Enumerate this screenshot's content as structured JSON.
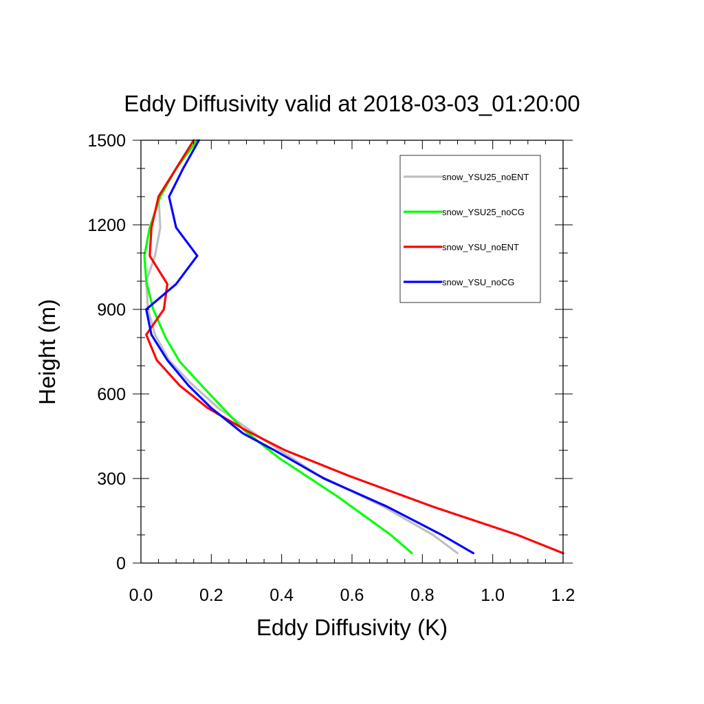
{
  "chart_data": {
    "type": "line",
    "title": "Eddy Diffusivity valid at 2018-03-03_01:20:00",
    "xlabel": "Eddy Diffusivity (K)",
    "ylabel": "Height (m)",
    "xlim": [
      0,
      1.2
    ],
    "ylim": [
      0,
      1500
    ],
    "x_ticks": [
      "0.0",
      "0.2",
      "0.4",
      "0.6",
      "0.8",
      "1.0",
      "1.2"
    ],
    "y_ticks": [
      "0",
      "300",
      "600",
      "900",
      "1200",
      "1500"
    ],
    "legend_position": "top-right",
    "series": [
      {
        "name": "snow_YSU25_noENT",
        "color": "#bfbfbf",
        "points": [
          [
            0.9,
            35
          ],
          [
            0.83,
            100
          ],
          [
            0.69,
            200
          ],
          [
            0.5,
            315
          ],
          [
            0.34,
            445
          ],
          [
            0.22,
            550
          ],
          [
            0.14,
            640
          ],
          [
            0.08,
            720
          ],
          [
            0.04,
            810
          ],
          [
            0.02,
            900
          ],
          [
            0.015,
            1000
          ],
          [
            0.04,
            1090
          ],
          [
            0.055,
            1190
          ],
          [
            0.05,
            1300
          ],
          [
            0.1,
            1400
          ],
          [
            0.15,
            1500
          ]
        ]
      },
      {
        "name": "snow_YSU25_noCG",
        "color": "#00ff00",
        "points": [
          [
            0.77,
            35
          ],
          [
            0.71,
            100
          ],
          [
            0.56,
            235
          ],
          [
            0.39,
            375
          ],
          [
            0.29,
            475
          ],
          [
            0.18,
            620
          ],
          [
            0.11,
            715
          ],
          [
            0.07,
            800
          ],
          [
            0.035,
            900
          ],
          [
            0.015,
            1000
          ],
          [
            0.01,
            1090
          ],
          [
            0.025,
            1190
          ],
          [
            0.055,
            1300
          ],
          [
            0.1,
            1400
          ],
          [
            0.16,
            1500
          ]
        ]
      },
      {
        "name": "snow_YSU_noENT",
        "color": "#ff0000",
        "points": [
          [
            1.2,
            35
          ],
          [
            1.07,
            100
          ],
          [
            0.83,
            200
          ],
          [
            0.59,
            310
          ],
          [
            0.41,
            400
          ],
          [
            0.3,
            470
          ],
          [
            0.19,
            550
          ],
          [
            0.11,
            630
          ],
          [
            0.045,
            720
          ],
          [
            0.015,
            810
          ],
          [
            0.065,
            900
          ],
          [
            0.075,
            990
          ],
          [
            0.025,
            1090
          ],
          [
            0.03,
            1190
          ],
          [
            0.05,
            1300
          ],
          [
            0.1,
            1400
          ],
          [
            0.15,
            1500
          ]
        ]
      },
      {
        "name": "snow_YSU_noCG",
        "color": "#0000ff",
        "points": [
          [
            0.945,
            35
          ],
          [
            0.855,
            100
          ],
          [
            0.7,
            200
          ],
          [
            0.52,
            300
          ],
          [
            0.38,
            400
          ],
          [
            0.29,
            460
          ],
          [
            0.2,
            550
          ],
          [
            0.135,
            630
          ],
          [
            0.075,
            720
          ],
          [
            0.03,
            810
          ],
          [
            0.015,
            900
          ],
          [
            0.1,
            990
          ],
          [
            0.16,
            1090
          ],
          [
            0.1,
            1190
          ],
          [
            0.08,
            1300
          ],
          [
            0.12,
            1400
          ],
          [
            0.165,
            1500
          ]
        ]
      }
    ]
  }
}
